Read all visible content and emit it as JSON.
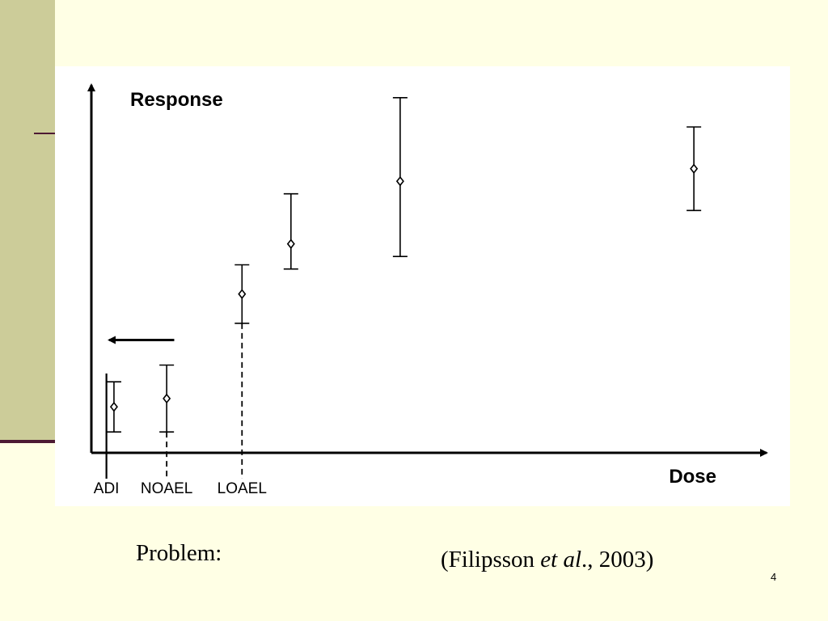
{
  "slide": {
    "caption_left": "Problem:",
    "citation_open": "(Filipsson ",
    "citation_italic": "et al",
    "citation_close": "., 2003)",
    "slide_number": "4",
    "colors": {
      "background": "#FFFFE5",
      "sidebar": "#CCCC99",
      "accent_rule": "#4D1A33",
      "figure_background": "#FFFFFF",
      "ink": "#000000"
    }
  },
  "chart_data": {
    "type": "scatter",
    "title": "",
    "ylabel": "Response",
    "xlabel": "Dose",
    "axis_ticks_shown": false,
    "grid": false,
    "x_markers": [
      {
        "label": "ADI",
        "x": 0.4,
        "style": "solid"
      },
      {
        "label": "NOAEL",
        "x": 2.0,
        "style": "dashed"
      },
      {
        "label": "LOAEL",
        "x": 4.0,
        "style": "dashed"
      }
    ],
    "arrow_annotation": {
      "direction": "left",
      "from_x": 2.2,
      "to_x": 0.3,
      "y": 2.7
    },
    "series": [
      {
        "marker": "diamond",
        "error_bars": true,
        "points": [
          {
            "x": 0.6,
            "y": 1.1,
            "low": 0.5,
            "high": 1.7
          },
          {
            "x": 2.0,
            "y": 1.3,
            "low": 0.5,
            "high": 2.1
          },
          {
            "x": 4.0,
            "y": 3.8,
            "low": 3.1,
            "high": 4.5
          },
          {
            "x": 5.3,
            "y": 5.0,
            "low": 4.4,
            "high": 6.2
          },
          {
            "x": 8.2,
            "y": 6.5,
            "low": 4.7,
            "high": 8.5
          },
          {
            "x": 16.0,
            "y": 6.8,
            "low": 5.8,
            "high": 7.8
          }
        ]
      }
    ],
    "xlim": [
      0,
      17.5
    ],
    "ylim": [
      0,
      9.0
    ]
  }
}
